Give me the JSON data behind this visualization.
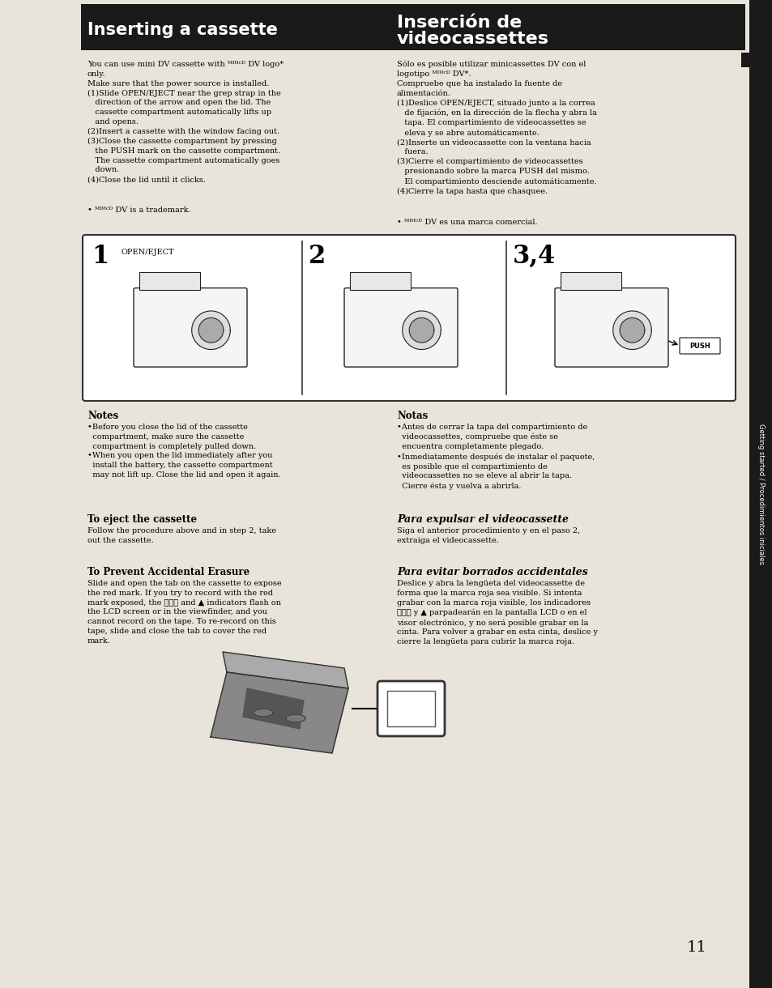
{
  "bg_color": "#e8e4dc",
  "page_width": 9.54,
  "page_height": 12.2,
  "header_bg": "#1a1a1a",
  "header_text_left": "Inserting a cassette",
  "header_text_right_line1": "Inserción de",
  "header_text_right_line2": "videocassettes",
  "sidebar_text": "Getting started / Procedimientos iniciales",
  "left_body_para1": "You can use mini DV cassette with ᴹᴵᴻᶜᴰ DV logo*\nonly.\nMake sure that the power source is installed.\n(1)Slide OPEN/EJECT near the grep strap in the\n   direction of the arrow and open the lid. The\n   cassette compartment automatically lifts up\n   and opens.\n(2)Insert a cassette with the window facing out.\n(3)Close the cassette compartment by pressing\n   the PUSH mark on the cassette compartment.\n   The cassette compartment automatically goes\n   down.\n(4)Close the lid until it clicks.",
  "left_body_trademark": "• ᴹᴵᴻᶜᴰ DV is a trademark.",
  "right_body_para1": "Sólo es posible utilizar minicassettes DV con el\nlogotipo ᴹᴵᴻᶜᴰ DV*.\nCompruebe que ha instalado la fuente de\nalimentación.\n(1)Deslice OPEN/EJECT, situado junto a la correa\n   de fijación, en la dirección de la flecha y abra la\n   tapa. El compartimiento de videocassettes se\n   eleva y se abre automáticamente.\n(2)Inserte un videocassette con la ventana hacia\n   fuera.\n(3)Cierre el compartimiento de videocassettes\n   presionando sobre la marca PUSH del mismo.\n   El compartimiento desciende automáticamente.\n(4)Cierre la tapa hasta que chasquee.",
  "right_body_trademark": "• ᴹᴵᴻᶜᴰ DV es una marca comercial.",
  "notes_left_header": "Notes",
  "notes_left_text": "•Before you close the lid of the cassette\n  compartment, make sure the cassette\n  compartment is completely pulled down.\n•When you open the lid immediately after you\n  install the battery, the cassette compartment\n  may not lift up. Close the lid and open it again.",
  "notes_right_header": "Notas",
  "notes_right_text": "•Antes de cerrar la tapa del compartimiento de\n  videocassettes, compruebe que éste se\n  encuentra completamente plegado.\n•Inmediatamente después de instalar el paquete,\n  es posible que el compartimiento de\n  videocassettes no se eleve al abrir la tapa.\n  Cierre ésta y vuelva a abrirla.",
  "eject_left_header": "To eject the cassette",
  "eject_left_text": "Follow the procedure above and in step 2, take\nout the cassette.",
  "eject_right_header": "Para expulsar el videocassette",
  "eject_right_text": "Siga el anterior procedimiento y en el paso 2,\nextraiga el videocassette.",
  "erasure_left_header": "To Prevent Accidental Erasure",
  "erasure_left_text": "Slide and open the tab on the cassette to expose\nthe red mark. If you try to record with the red\nmark exposed, the Ⓡⓔⓒ and ▲ indicators flash on\nthe LCD screen or in the viewfinder, and you\ncannot record on the tape. To re-record on this\ntape, slide and close the tab to cover the red\nmark.",
  "erasure_right_header": "Para evitar borrados accidentales",
  "erasure_right_text": "Deslice y abra la lengüeta del videocassette de\nforma que la marca roja sea visible. Si intenta\ngrabar con la marca roja visible, los indicadores\nⓇⓔⓒ y ▲ parpadearán en la pantalla LCD o en el\nvisor electrónico, y no será posible grabar en la\ncinta. Para volver a grabar en esta cinta, deslice y\ncierre la lengüeta para cubrir la marca roja.",
  "page_number": "11"
}
